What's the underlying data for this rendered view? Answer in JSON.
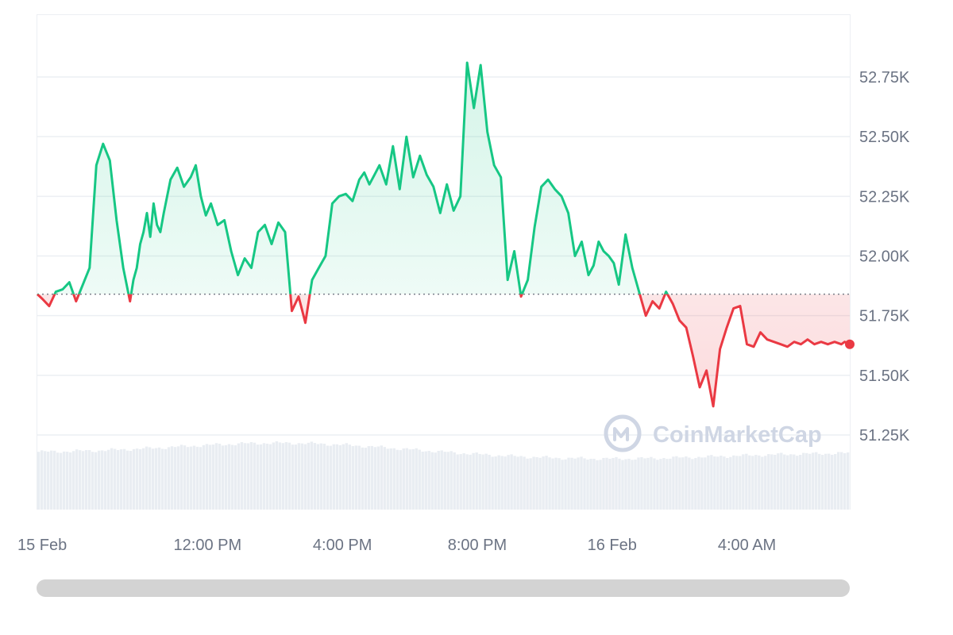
{
  "chart_data": {
    "type": "area",
    "y_tick_labels": [
      "52.75K",
      "52.50K",
      "52.25K",
      "52.00K",
      "51.75K",
      "51.50K",
      "51.25K"
    ],
    "y_ticks": [
      52750,
      52500,
      52250,
      52000,
      51750,
      51500,
      51250
    ],
    "x_tick_labels": [
      "15 Feb",
      "12:00 PM",
      "4:00 PM",
      "8:00 PM",
      "16 Feb",
      "4:00 AM"
    ],
    "x_ticks_hours": [
      -4,
      0,
      4,
      8,
      12,
      16
    ],
    "x_range_hours": [
      -5.05,
      19.05
    ],
    "ylim": [
      51000,
      53000
    ],
    "baseline": 51840,
    "grid": true,
    "colors": {
      "up": "#16c784",
      "down": "#ea3943",
      "grid": "#eceff3",
      "volume": "#e9edf2"
    },
    "series": [
      {
        "x_hours": [
          -5.05,
          -4.9,
          -4.7,
          -4.5,
          -4.3,
          -4.1,
          -3.9,
          -3.7,
          -3.5,
          -3.3,
          -3.1,
          -2.9,
          -2.7,
          -2.5,
          -2.3,
          -2.2,
          -2.1,
          -2.0,
          -1.9,
          -1.8,
          -1.7,
          -1.6,
          -1.5,
          -1.4,
          -1.3,
          -1.1,
          -0.9,
          -0.7,
          -0.5,
          -0.35,
          -0.2,
          -0.05,
          0.1,
          0.3,
          0.5,
          0.7,
          0.9,
          1.1,
          1.3,
          1.5,
          1.7,
          1.9,
          2.1,
          2.3,
          2.5,
          2.7,
          2.9,
          3.1,
          3.3,
          3.5,
          3.7,
          3.9,
          4.1,
          4.3,
          4.5,
          4.65,
          4.8,
          4.95,
          5.1,
          5.3,
          5.5,
          5.7,
          5.9,
          6.1,
          6.3,
          6.5,
          6.7,
          6.9,
          7.1,
          7.3,
          7.5,
          7.7,
          7.9,
          8.1,
          8.3,
          8.5,
          8.7,
          8.9,
          9.1,
          9.3,
          9.5,
          9.7,
          9.9,
          10.1,
          10.3,
          10.5,
          10.7,
          10.9,
          11.1,
          11.3,
          11.45,
          11.6,
          11.75,
          11.9,
          12.05,
          12.2,
          12.4,
          12.6,
          12.8,
          13.0,
          13.2,
          13.4,
          13.6,
          13.8,
          14.0,
          14.2,
          14.4,
          14.6,
          14.8,
          15.0,
          15.2,
          15.4,
          15.6,
          15.8,
          16.0,
          16.2,
          16.4,
          16.6,
          16.8,
          17.0,
          17.2,
          17.4,
          17.6,
          17.8,
          18.0,
          18.2,
          18.4,
          18.6,
          18.8,
          18.9,
          19.05
        ],
        "values": [
          51840,
          51820,
          51790,
          51850,
          51860,
          51890,
          51810,
          51880,
          51950,
          52380,
          52470,
          52400,
          52150,
          51950,
          51810,
          51900,
          51950,
          52050,
          52100,
          52180,
          52080,
          52220,
          52130,
          52100,
          52180,
          52320,
          52370,
          52290,
          52330,
          52380,
          52250,
          52170,
          52220,
          52130,
          52150,
          52020,
          51920,
          51990,
          51950,
          52100,
          52130,
          52050,
          52140,
          52100,
          51770,
          51830,
          51720,
          51900,
          51950,
          52000,
          52220,
          52250,
          52260,
          52230,
          52320,
          52350,
          52300,
          52340,
          52380,
          52300,
          52460,
          52280,
          52500,
          52330,
          52420,
          52340,
          52290,
          52180,
          52300,
          52190,
          52250,
          52810,
          52620,
          52800,
          52520,
          52380,
          52330,
          51900,
          52020,
          51830,
          51900,
          52120,
          52290,
          52320,
          52280,
          52250,
          52180,
          52000,
          52060,
          51920,
          51960,
          52060,
          52020,
          52000,
          51970,
          51880,
          52090,
          51950,
          51850,
          51750,
          51810,
          51780,
          51850,
          51800,
          51730,
          51700,
          51580,
          51450,
          51520,
          51370,
          51610,
          51700,
          51780,
          51790,
          51630,
          51620,
          51680,
          51650,
          51640,
          51630,
          51620,
          51640,
          51630,
          51650,
          51630,
          51640,
          51630,
          51640,
          51630,
          51640,
          51630
        ]
      }
    ]
  },
  "watermark": {
    "brand": "CoinMarketCap",
    "icon": "coinmarketcap-logo-icon"
  }
}
